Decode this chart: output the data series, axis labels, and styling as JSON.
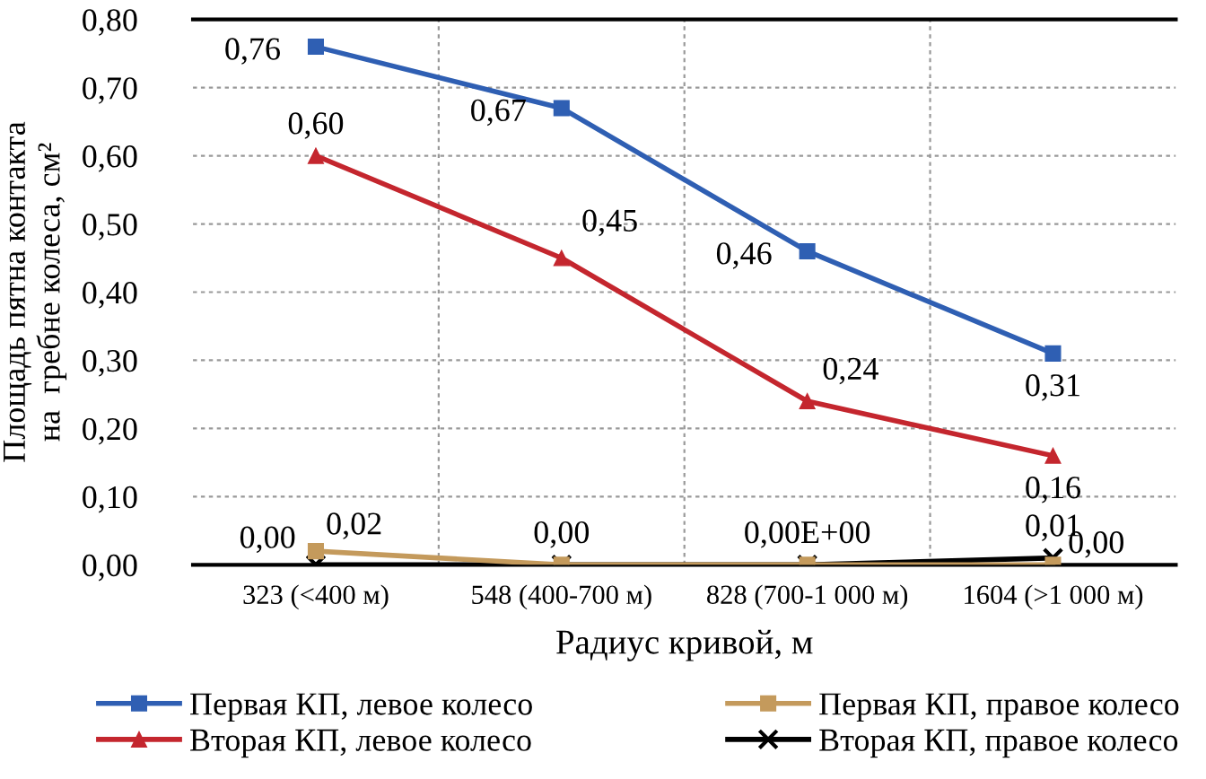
{
  "chart_data": {
    "type": "line",
    "xlabel": "Радиус кривой, м",
    "ylabel": "Площадь пятна контакта\nна  гребне колеса, см²",
    "categories": [
      "323 (<400 м)",
      "548 (400-700 м)",
      "828 (700-1 000 м)",
      "1604 (>1 000 м)"
    ],
    "series": [
      {
        "name": "Первая КП, левое колесо",
        "color": "#2f5fb3",
        "marker": "square",
        "values": [
          0.76,
          0.67,
          0.46,
          0.31
        ],
        "value_labels": [
          "0,76",
          "0,67",
          "0,46",
          "0,31"
        ]
      },
      {
        "name": "Первая КП, правое колесо",
        "color": "#c49a5c",
        "marker": "square",
        "values": [
          0.02,
          0.0,
          0.0,
          0.0
        ],
        "value_labels": [
          "0,02",
          null,
          null,
          "0,00"
        ]
      },
      {
        "name": "Вторая КП, левое колесо",
        "color": "#c4262e",
        "marker": "triangle",
        "values": [
          0.6,
          0.45,
          0.24,
          0.16
        ],
        "value_labels": [
          "0,60",
          "0,45",
          "0,24",
          "0,16"
        ]
      },
      {
        "name": "Вторая КП, правое колесо",
        "color": "#000000",
        "marker": "cross",
        "values": [
          0.0,
          0.0,
          0.0,
          0.01
        ],
        "value_labels": [
          "0,00",
          "0,00",
          "0,00E+00",
          "0,01"
        ]
      }
    ],
    "ylim": [
      0,
      0.8
    ],
    "yticks": [
      {
        "value": 0,
        "label": "0,00"
      },
      {
        "value": 0.1,
        "label": "0,10"
      },
      {
        "value": 0.2,
        "label": "0,20"
      },
      {
        "value": 0.3,
        "label": "0,30"
      },
      {
        "value": 0.4,
        "label": "0,40"
      },
      {
        "value": 0.5,
        "label": "0,50"
      },
      {
        "value": 0.6,
        "label": "0,60"
      },
      {
        "value": 0.7,
        "label": "0,70"
      },
      {
        "value": 0.8,
        "label": "0,80"
      }
    ],
    "grid": true,
    "legend": "bottom",
    "line_style": "solid"
  }
}
